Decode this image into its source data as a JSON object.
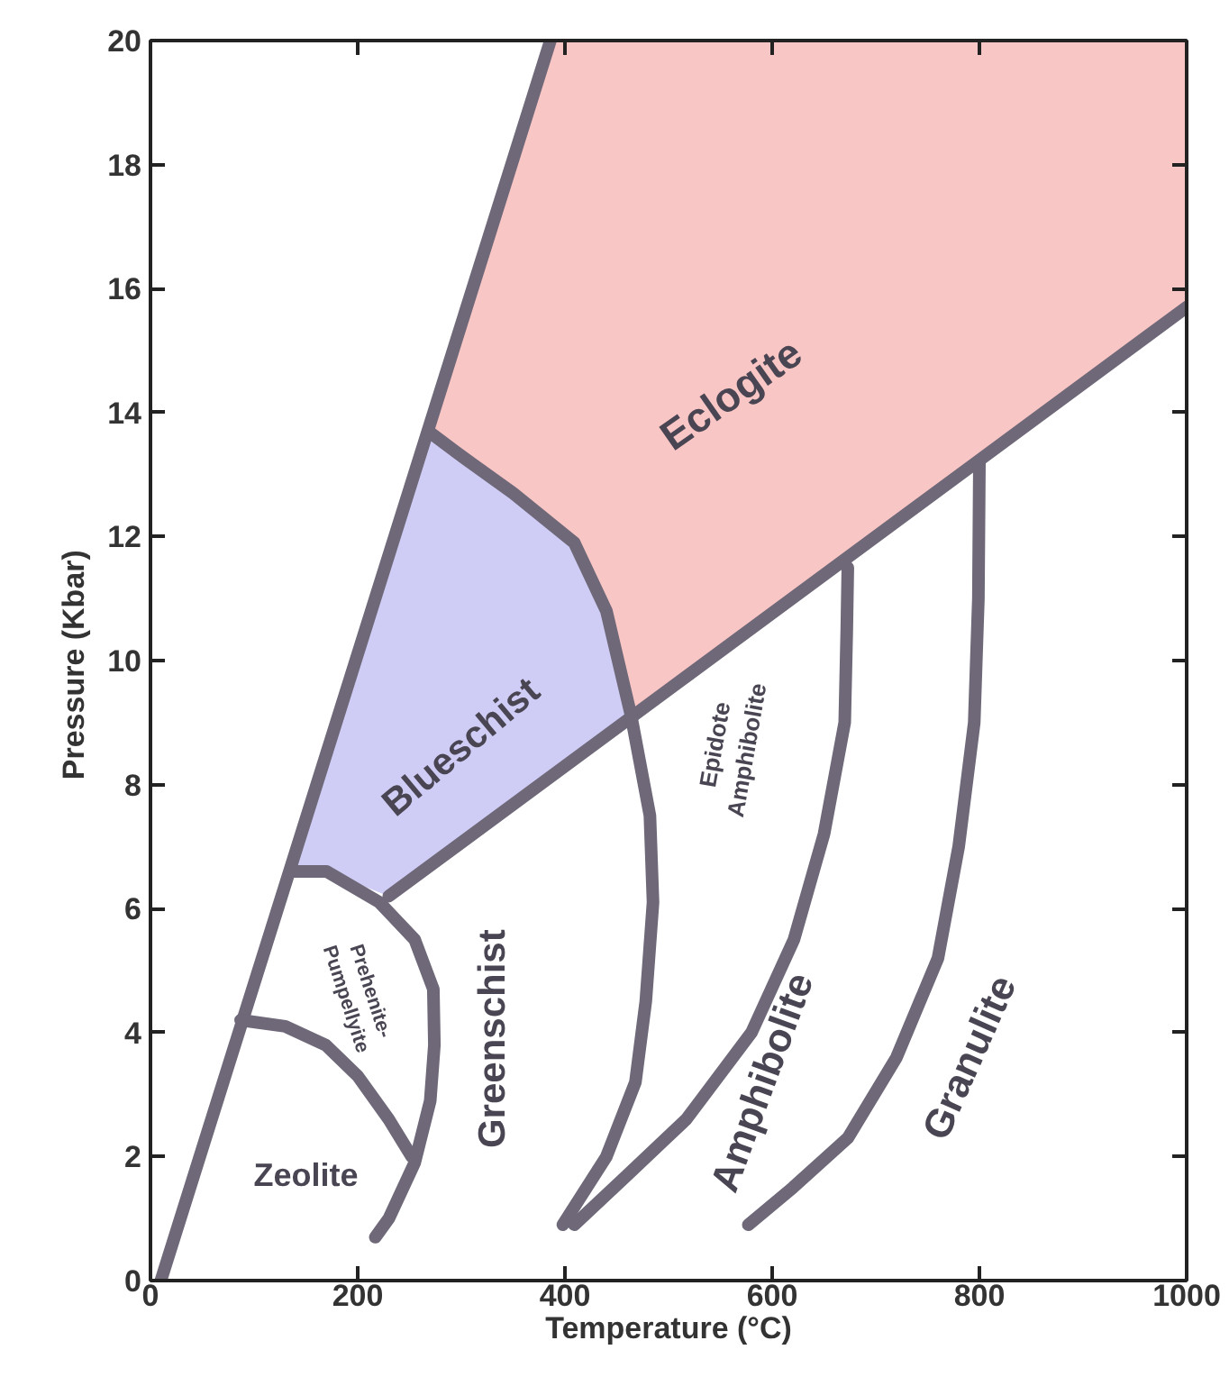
{
  "chart_data": {
    "type": "line",
    "xlabel": "Temperature (°C)",
    "ylabel": "Pressure  (Kbar)",
    "xlim": [
      0,
      1000
    ],
    "ylim": [
      0,
      20
    ],
    "xticks": [
      0,
      200,
      400,
      600,
      800,
      1000
    ],
    "yticks": [
      0,
      2,
      4,
      6,
      8,
      10,
      12,
      14,
      16,
      18,
      20
    ],
    "grid": false,
    "marker": "none",
    "line_style": "solid",
    "series": [
      {
        "type": "area",
        "color": "#f9c6c6",
        "x": [
          268,
          386,
          1000,
          1000,
          464,
          440,
          409,
          350,
          300
        ],
        "values": [
          13.7,
          20,
          20,
          15.7,
          9.1,
          10.8,
          11.9,
          12.7,
          13.3
        ]
      },
      {
        "type": "area",
        "color": "#cfcdf5",
        "x": [
          132,
          268,
          300,
          350,
          409,
          440,
          464,
          230,
          170
        ],
        "values": [
          6.5,
          13.7,
          13.3,
          12.7,
          11.9,
          10.8,
          9.1,
          6.2,
          6.6
        ]
      },
      {
        "color": "#6e6878",
        "x": [
          10,
          386
        ],
        "values": [
          0,
          20
        ]
      },
      {
        "color": "#6e6878",
        "x": [
          230,
          1000
        ],
        "values": [
          6.2,
          15.7
        ]
      },
      {
        "color": "#6e6878",
        "x": [
          268,
          300,
          350,
          409,
          440,
          464,
          482,
          485,
          478,
          468,
          440,
          398
        ],
        "values": [
          13.7,
          13.3,
          12.7,
          11.9,
          10.8,
          9.1,
          7.5,
          6.1,
          4.5,
          3.2,
          2.0,
          0.9
        ]
      },
      {
        "color": "#6e6878",
        "x": [
          673,
          672,
          670,
          650,
          621,
          580,
          517,
          460,
          409
        ],
        "values": [
          11.5,
          10.5,
          9.0,
          7.2,
          5.5,
          4.0,
          2.6,
          1.7,
          0.9
        ]
      },
      {
        "color": "#6e6878",
        "x": [
          800,
          799,
          795,
          780,
          760,
          720,
          673,
          620,
          577
        ],
        "values": [
          13.2,
          11.0,
          9.0,
          7.0,
          5.2,
          3.6,
          2.3,
          1.5,
          0.9
        ]
      },
      {
        "color": "#6e6878",
        "x": [
          87,
          130,
          169,
          200,
          230,
          252
        ],
        "values": [
          4.2,
          4.1,
          3.8,
          3.3,
          2.6,
          2.0
        ]
      },
      {
        "color": "#6e6878",
        "x": [
          135,
          170,
          221,
          255,
          273,
          274,
          270,
          255,
          230,
          217
        ],
        "values": [
          6.6,
          6.6,
          6.1,
          5.5,
          4.7,
          3.8,
          2.9,
          1.9,
          1.0,
          0.7
        ]
      }
    ],
    "annotations": [
      "Eclogite",
      "Blueschist",
      "Prehenite-\nPumpellyite",
      "Epidote\nAmphibolite",
      "Greenschist",
      "Amphibolite",
      "Granulite",
      "Zeolite"
    ]
  }
}
